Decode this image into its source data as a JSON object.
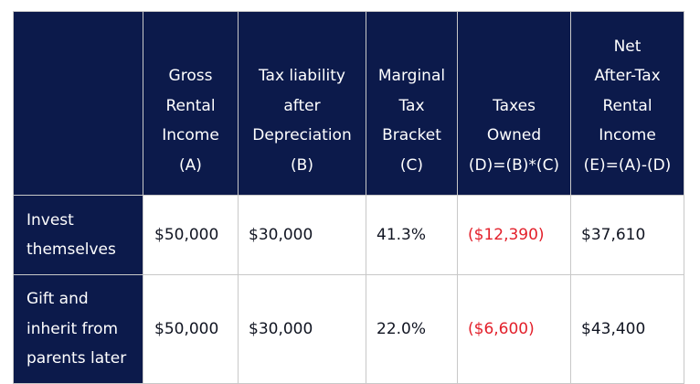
{
  "table": {
    "headers": [
      "",
      "Gross\nRental\nIncome\n(A)",
      "Tax liability\nafter\nDepreciation\n(B)",
      "Marginal\nTax\nBracket\n(C)",
      "Taxes\nOwned\n(D)=(B)*(C)",
      "Net\nAfter-Tax\nRental\nIncome\n(E)=(A)-(D)"
    ],
    "rows": [
      {
        "label": "Invest\nthemselves",
        "gross_rental_income": "$50,000",
        "tax_liability": "$30,000",
        "marginal_tax_bracket": "41.3%",
        "taxes_owned": "($12,390)",
        "net_income": "$37,610"
      },
      {
        "label": "Gift and\ninherit from\nparents later",
        "gross_rental_income": "$50,000",
        "tax_liability": "$30,000",
        "marginal_tax_bracket": "22.0%",
        "taxes_owned": "($6,600)",
        "net_income": "$43,400"
      }
    ]
  },
  "colors": {
    "header_background": "#0c1a4b",
    "header_text": "#ffffff",
    "negative_value": "#e3202b",
    "body_text": "#111522",
    "grid_line": "#c8c8c8"
  }
}
